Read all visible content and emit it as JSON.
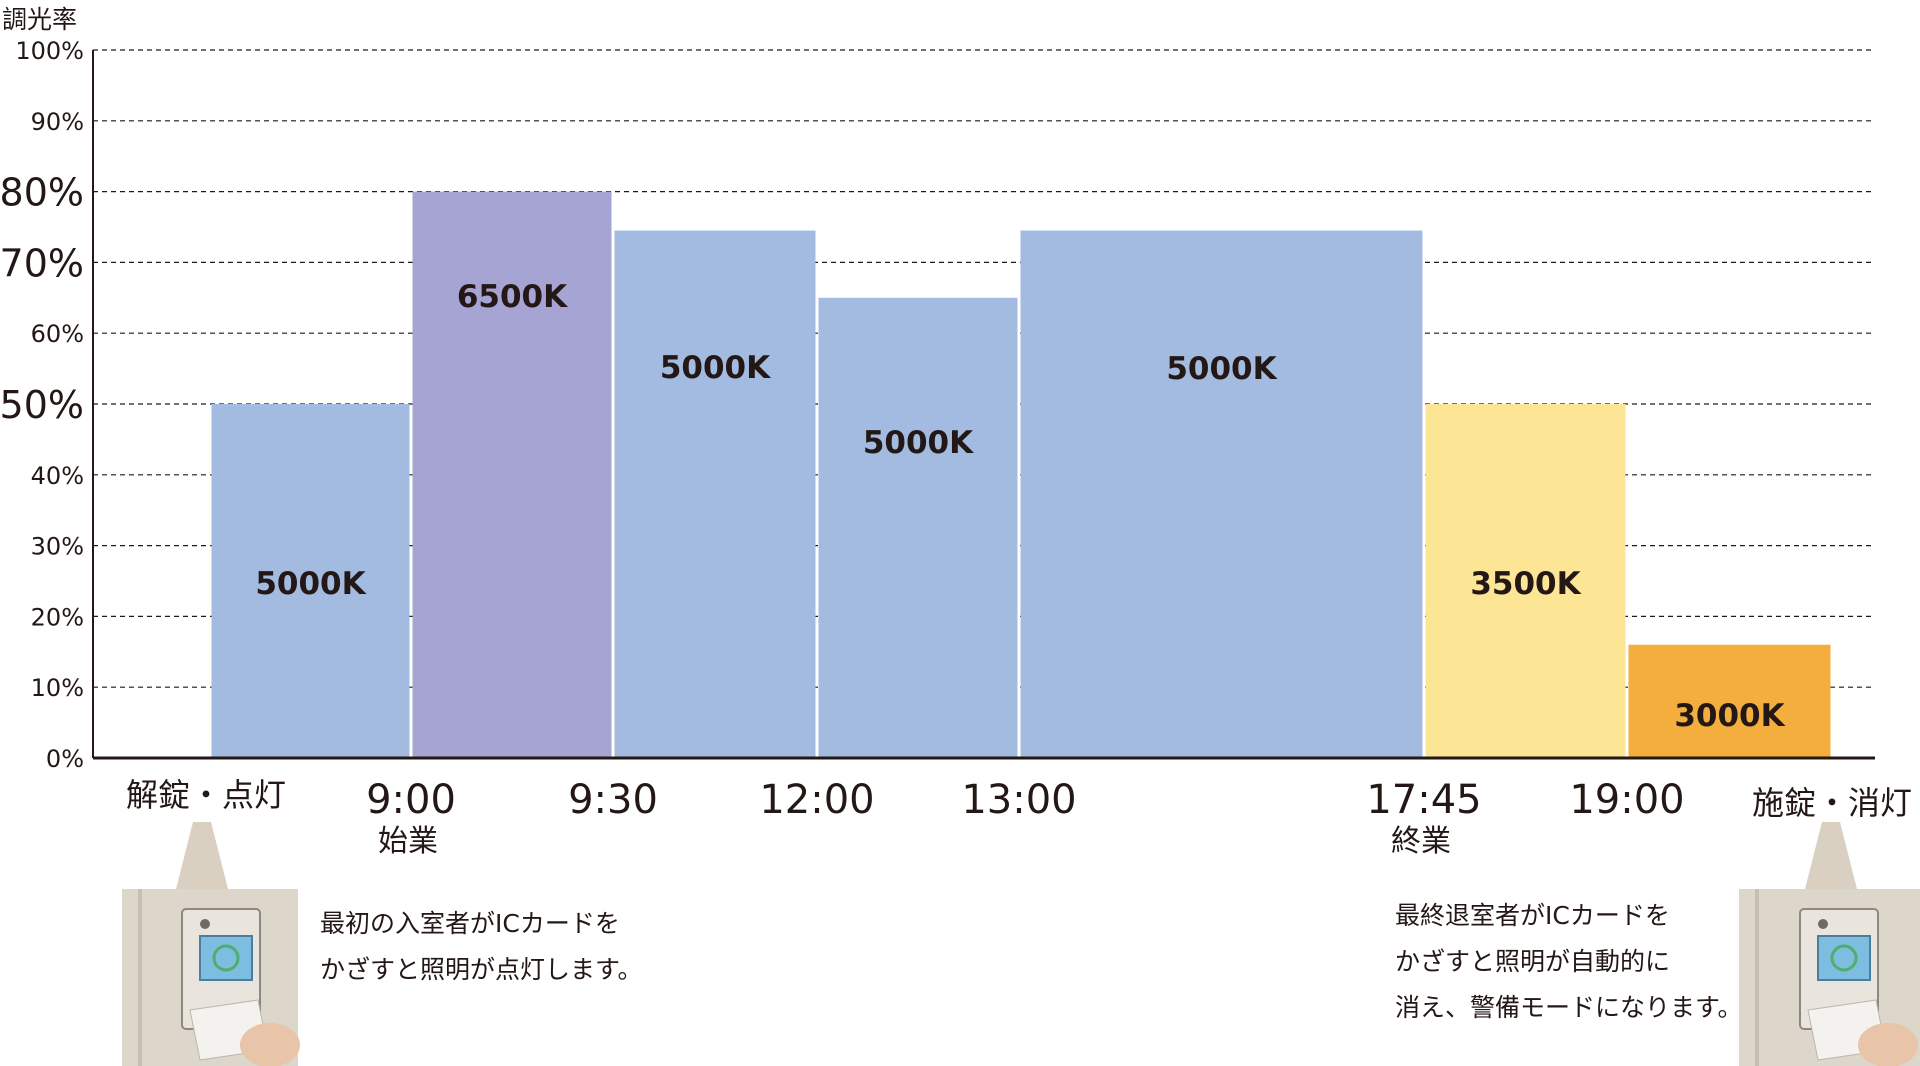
{
  "chart_data": {
    "type": "bar",
    "ylabel": "調光率",
    "ylim": [
      0,
      100
    ],
    "y_ticks": [
      "0%",
      "10%",
      "20%",
      "30%",
      "40%",
      "50%",
      "60%",
      "70%",
      "80%",
      "90%",
      "100%"
    ],
    "grid": true,
    "x_ticks": [
      {
        "label": "9:00",
        "sub": "始業"
      },
      {
        "label": "9:30",
        "sub": ""
      },
      {
        "label": "12:00",
        "sub": ""
      },
      {
        "label": "13:00",
        "sub": ""
      },
      {
        "label": "17:45",
        "sub": "終業"
      },
      {
        "label": "19:00",
        "sub": ""
      }
    ],
    "bars": [
      {
        "label": "5000K",
        "value": 50,
        "color": "#a3bbe0"
      },
      {
        "label": "6500K",
        "value": 80,
        "color": "#a5a4d3"
      },
      {
        "label": "5000K",
        "value": 74.5,
        "color": "#a3bbe0"
      },
      {
        "label": "5000K",
        "value": 65,
        "color": "#a3bbe0"
      },
      {
        "label": "5000K",
        "value": 74.5,
        "color": "#a3bbe0"
      },
      {
        "label": "3500K",
        "value": 50,
        "color": "#fde596"
      },
      {
        "label": "3000K",
        "value": 16,
        "color": "#f4ae3d"
      }
    ]
  },
  "events": {
    "start": "解錠・点灯",
    "end": "施錠・消灯"
  },
  "captions": {
    "start": "最初の入室者がICカードを\nかざすと照明が点灯します。",
    "end": "最終退室者がICカードを\nかざすと照明が自動的に\n消え、警備モードになります。"
  }
}
